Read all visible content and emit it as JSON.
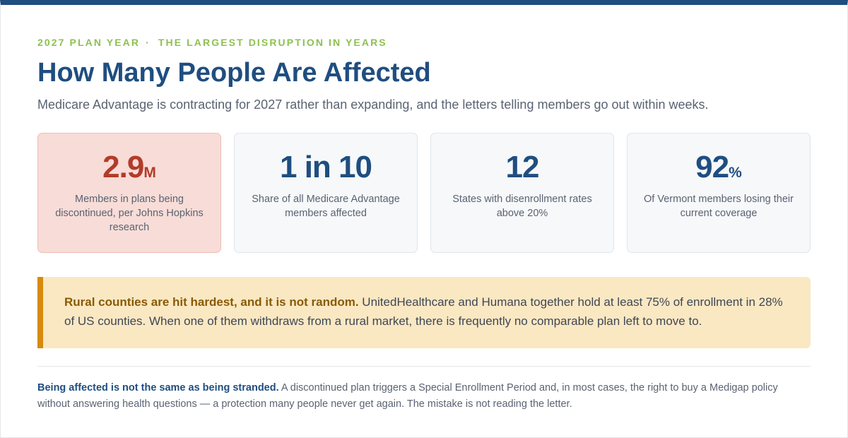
{
  "header": {
    "eyebrow_left": "2027 PLAN YEAR",
    "eyebrow_separator": "·",
    "eyebrow_right": "THE LARGEST DISRUPTION IN YEARS",
    "title": "How Many People Are Affected",
    "subtitle": "Medicare Advantage is contracting for 2027 rather than expanding, and the letters telling members go out within weeks."
  },
  "stats": [
    {
      "value": "2.9",
      "unit": "M",
      "label": "Members in plans being discontinued, per Johns Hopkins research",
      "highlight": true
    },
    {
      "value": "1 in 10",
      "unit": "",
      "label": "Share of all Medicare Advantage members affected",
      "highlight": false
    },
    {
      "value": "12",
      "unit": "",
      "label": "States with disenrollment rates above 20%",
      "highlight": false
    },
    {
      "value": "92",
      "unit": "%",
      "label": "Of Vermont members losing their current coverage",
      "highlight": false
    }
  ],
  "callout": {
    "strong": "Rural counties are hit hardest, and it is not random.",
    "body": " UnitedHealthcare and Humana together hold at least 75% of enrollment in 28% of US counties. When one of them withdraws from a rural market, there is frequently no comparable plan left to move to."
  },
  "footnote": {
    "strong": "Being affected is not the same as being stranded.",
    "body": " A discontinued plan triggers a Special Enrollment Period and, in most cases, the right to buy a Medigap policy without answering health questions — a protection many people never get again. The mistake is not reading the letter."
  },
  "colors": {
    "brand_navy": "#1f4e80",
    "eyebrow_green": "#8cc152",
    "highlight_red": "#b23b2a",
    "highlight_bg": "#f8dcd7",
    "callout_bg": "#fae8c3",
    "callout_accent": "#d68a0e",
    "callout_strong": "#8a5a05"
  }
}
